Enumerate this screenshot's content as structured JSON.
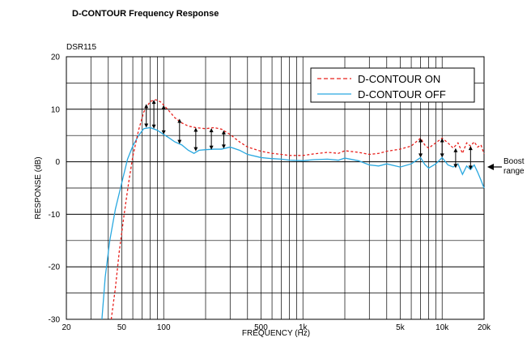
{
  "title": "D-CONTOUR Frequency Response",
  "chart_data": {
    "type": "line",
    "model_label": "DSR115",
    "xlabel": "FREQUENCY (Hz)",
    "ylabel": "RESPONSE (dB)",
    "xscale": "log",
    "xlim": [
      20,
      20000
    ],
    "ylim": [
      -30,
      20
    ],
    "grid": true,
    "legend_position": "top-right",
    "x_tick_values": [
      20,
      50,
      100,
      500,
      1000,
      5000,
      10000,
      20000
    ],
    "x_tick_labels": [
      "20",
      "50",
      "100",
      "500",
      "1k",
      "5k",
      "10k",
      "20k"
    ],
    "y_tick_values": [
      20,
      10,
      0,
      -10,
      -20,
      -30
    ],
    "y_tick_labels": [
      "20",
      "10",
      "0",
      "-10",
      "-20",
      "-30"
    ],
    "annotation": {
      "text_lines": [
        "Boost",
        "range"
      ]
    },
    "series": [
      {
        "name": "D-CONTOUR ON",
        "color": "#e8201c",
        "dash": "dashed",
        "points": [
          [
            42,
            -30
          ],
          [
            45,
            -24
          ],
          [
            48,
            -17
          ],
          [
            52,
            -10
          ],
          [
            56,
            -4
          ],
          [
            60,
            1
          ],
          [
            66,
            6
          ],
          [
            72,
            9.5
          ],
          [
            80,
            11.5
          ],
          [
            88,
            11.8
          ],
          [
            95,
            11.4
          ],
          [
            100,
            10.8
          ],
          [
            110,
            9.6
          ],
          [
            120,
            8.4
          ],
          [
            135,
            7.4
          ],
          [
            150,
            6.8
          ],
          [
            170,
            6.5
          ],
          [
            200,
            6.3
          ],
          [
            230,
            6.5
          ],
          [
            260,
            6.2
          ],
          [
            300,
            5.2
          ],
          [
            350,
            3.8
          ],
          [
            400,
            2.8
          ],
          [
            500,
            2
          ],
          [
            600,
            1.6
          ],
          [
            700,
            1.4
          ],
          [
            800,
            1.2
          ],
          [
            1000,
            1.2
          ],
          [
            1200,
            1.5
          ],
          [
            1500,
            1.8
          ],
          [
            1800,
            1.6
          ],
          [
            2000,
            2.1
          ],
          [
            2500,
            1.8
          ],
          [
            3000,
            1.4
          ],
          [
            3500,
            1.6
          ],
          [
            4000,
            2
          ],
          [
            5000,
            2.4
          ],
          [
            6000,
            3
          ],
          [
            7000,
            4.5
          ],
          [
            7500,
            3.2
          ],
          [
            8000,
            2.6
          ],
          [
            9000,
            3.6
          ],
          [
            10000,
            4.5
          ],
          [
            11000,
            3.6
          ],
          [
            12000,
            2.6
          ],
          [
            13000,
            3.6
          ],
          [
            14000,
            1.6
          ],
          [
            15000,
            3.6
          ],
          [
            16000,
            3
          ],
          [
            17000,
            3.8
          ],
          [
            18000,
            2.8
          ],
          [
            19000,
            3.2
          ],
          [
            20000,
            1.5
          ]
        ]
      },
      {
        "name": "D-CONTOUR OFF",
        "color": "#29a8e0",
        "dash": "solid",
        "points": [
          [
            36,
            -30
          ],
          [
            38,
            -22
          ],
          [
            41,
            -15
          ],
          [
            45,
            -9
          ],
          [
            50,
            -4
          ],
          [
            55,
            0.5
          ],
          [
            60,
            3
          ],
          [
            66,
            5
          ],
          [
            72,
            6.3
          ],
          [
            80,
            6.5
          ],
          [
            90,
            6
          ],
          [
            100,
            5.2
          ],
          [
            110,
            4.5
          ],
          [
            120,
            3.8
          ],
          [
            135,
            3.2
          ],
          [
            150,
            2.2
          ],
          [
            165,
            1.6
          ],
          [
            180,
            2.2
          ],
          [
            200,
            2.3
          ],
          [
            230,
            2.4
          ],
          [
            260,
            2.4
          ],
          [
            300,
            2.8
          ],
          [
            350,
            2.2
          ],
          [
            400,
            1.4
          ],
          [
            500,
            0.8
          ],
          [
            600,
            0.6
          ],
          [
            700,
            0.5
          ],
          [
            800,
            0.3
          ],
          [
            1000,
            0.2
          ],
          [
            1200,
            0.4
          ],
          [
            1500,
            0.5
          ],
          [
            1800,
            0.3
          ],
          [
            2000,
            0.7
          ],
          [
            2500,
            0.2
          ],
          [
            3000,
            -0.6
          ],
          [
            3500,
            -0.8
          ],
          [
            4000,
            -0.4
          ],
          [
            5000,
            -1
          ],
          [
            6000,
            -0.4
          ],
          [
            7000,
            0.8
          ],
          [
            7500,
            -0.5
          ],
          [
            8000,
            -1.2
          ],
          [
            9000,
            -0.4
          ],
          [
            10000,
            0.8
          ],
          [
            11000,
            -0.6
          ],
          [
            12000,
            -1
          ],
          [
            13000,
            -0.4
          ],
          [
            14000,
            -2.4
          ],
          [
            15000,
            -0.8
          ],
          [
            16000,
            -1.5
          ],
          [
            17000,
            -0.6
          ],
          [
            18000,
            -2
          ],
          [
            19000,
            -3.5
          ],
          [
            20000,
            -5
          ]
        ]
      }
    ],
    "boost_arrows": [
      {
        "x": 75,
        "from": 6.5,
        "to": 11
      },
      {
        "x": 85,
        "from": 6.3,
        "to": 11.8
      },
      {
        "x": 100,
        "from": 5.2,
        "to": 10.8
      },
      {
        "x": 130,
        "from": 3.4,
        "to": 8.2
      },
      {
        "x": 170,
        "from": 2.0,
        "to": 6.5
      },
      {
        "x": 220,
        "from": 2.3,
        "to": 6.4
      },
      {
        "x": 270,
        "from": 2.5,
        "to": 6.0
      },
      {
        "x": 7000,
        "from": 0.8,
        "to": 4.5
      },
      {
        "x": 10000,
        "from": 0.8,
        "to": 4.5
      },
      {
        "x": 12500,
        "from": -1.2,
        "to": 2.6
      },
      {
        "x": 16000,
        "from": -1.5,
        "to": 3.0
      }
    ]
  }
}
